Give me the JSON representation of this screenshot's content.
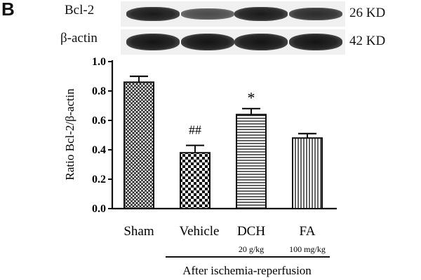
{
  "panel_letter": "B",
  "blot": {
    "rows": [
      {
        "label": "Bcl-2",
        "kd": "26 KD",
        "intensity": [
          0.95,
          0.55,
          0.95,
          0.8
        ]
      },
      {
        "label": "β-actin",
        "kd": "42 KD",
        "intensity": [
          1.0,
          1.0,
          1.0,
          1.0
        ]
      }
    ]
  },
  "chart_data": {
    "type": "bar",
    "categories": [
      "Sham",
      "Vehicle",
      "DCH",
      "FA"
    ],
    "category_sublabels": [
      "",
      "",
      "20 g/kg",
      "100 mg/kg"
    ],
    "values": [
      0.86,
      0.38,
      0.64,
      0.48
    ],
    "errors": [
      0.04,
      0.05,
      0.04,
      0.03
    ],
    "annotations": [
      "",
      "##",
      "*",
      ""
    ],
    "patterns": [
      "crosshatch",
      "checker",
      "horizontal",
      "vertical"
    ],
    "ylabel": "Ratio Bcl-2/β-actin",
    "ylim": [
      0,
      1.0
    ],
    "yticks": [
      "0.0",
      "0.2",
      "0.4",
      "0.6",
      "0.8",
      "1.0"
    ],
    "group_label": "After ischemia-reperfusion"
  }
}
